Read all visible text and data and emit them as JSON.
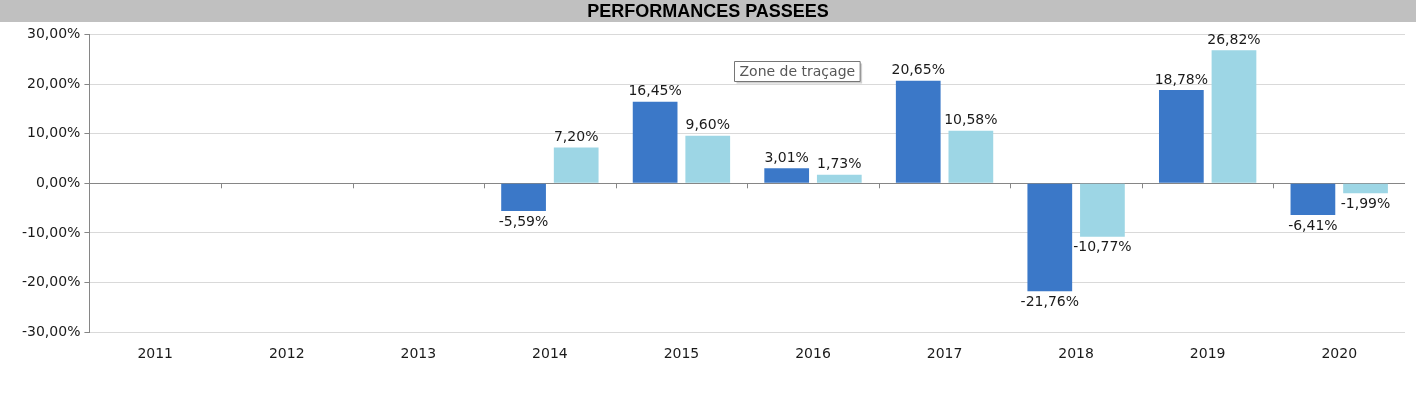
{
  "chart_data": {
    "type": "bar",
    "title": "PERFORMANCES PASSEES",
    "categories": [
      "2011",
      "2012",
      "2013",
      "2014",
      "2015",
      "2016",
      "2017",
      "2018",
      "2019",
      "2020"
    ],
    "series": [
      {
        "color": "#3b78c8",
        "values": [
          null,
          null,
          null,
          -5.59,
          16.45,
          3.01,
          20.65,
          -21.76,
          18.78,
          -6.41
        ],
        "value_labels": [
          null,
          null,
          null,
          "-5,59%",
          "16,45%",
          "3,01%",
          "20,65%",
          "-21,76%",
          "18,78%",
          "-6,41%"
        ]
      },
      {
        "color": "#9dd6e5",
        "values": [
          null,
          null,
          null,
          7.2,
          9.6,
          1.73,
          10.58,
          -10.77,
          26.82,
          -1.99
        ],
        "value_labels": [
          null,
          null,
          null,
          "7,20%",
          "9,60%",
          "1,73%",
          "10,58%",
          "-10,77%",
          "26,82%",
          "-1,99%"
        ]
      }
    ],
    "ylim": [
      -30,
      30
    ],
    "yticks": [
      {
        "value": -30,
        "label": "-30,00%"
      },
      {
        "value": -20,
        "label": "-20,00%"
      },
      {
        "value": -10,
        "label": "-10,00%"
      },
      {
        "value": 0,
        "label": "0,00%"
      },
      {
        "value": 10,
        "label": "10,00%"
      },
      {
        "value": 20,
        "label": "20,00%"
      },
      {
        "value": 30,
        "label": "30,00%"
      }
    ],
    "grid": "y",
    "annotations": [
      "Zone de traçage"
    ]
  }
}
